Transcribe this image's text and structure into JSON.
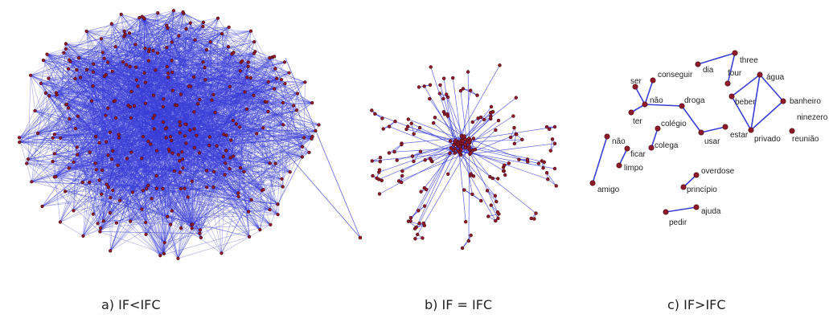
{
  "colors": {
    "edge": "#3a3fd6",
    "node": "#8e1a2a",
    "node_stroke": "#4a0a12",
    "label": "#222222"
  },
  "panels": [
    {
      "id": "a",
      "caption": "a) IF<IFC",
      "network": "dense"
    },
    {
      "id": "b",
      "caption": "b) IF = IFC",
      "network": "medium"
    },
    {
      "id": "c",
      "caption": "c) IF>IFC",
      "network": "sparse"
    }
  ],
  "panel_c": {
    "labels": [
      "conseguir",
      "ser",
      "não",
      "ter",
      "droga",
      "colégio",
      "colega",
      "usar",
      "estar",
      "dia",
      "three",
      "four",
      "água",
      "beber",
      "banheiro",
      "privado",
      "ninezero",
      "reunião",
      "não",
      "ficar",
      "limpo",
      "amigo",
      "overdose",
      "princípio",
      "pedir",
      "ajuda"
    ]
  }
}
